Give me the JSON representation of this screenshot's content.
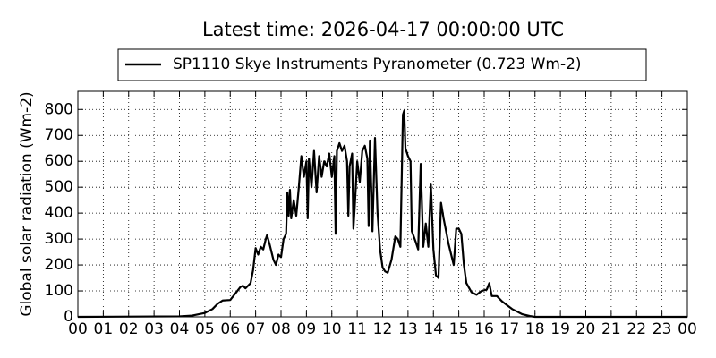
{
  "chart_data": {
    "type": "line",
    "title": "Latest time: 2026-04-17 00:00:00 UTC",
    "y_label": "Global solar radiation (Wm-2)",
    "legend_position": "top-center",
    "grid": true,
    "x": [
      0,
      4,
      4.5,
      5,
      5.3,
      5.5,
      5.7,
      6,
      6.2,
      6.4,
      6.5,
      6.6,
      6.8,
      6.9,
      7,
      7.1,
      7.2,
      7.3,
      7.4,
      7.45,
      7.55,
      7.7,
      7.8,
      7.9,
      8,
      8.1,
      8.2,
      8.25,
      8.3,
      8.35,
      8.4,
      8.5,
      8.6,
      8.7,
      8.8,
      8.9,
      9,
      9.05,
      9.1,
      9.2,
      9.3,
      9.4,
      9.5,
      9.6,
      9.7,
      9.8,
      9.9,
      10,
      10.1,
      10.15,
      10.2,
      10.3,
      10.4,
      10.5,
      10.6,
      10.65,
      10.7,
      10.8,
      10.85,
      10.9,
      11,
      11.1,
      11.2,
      11.3,
      11.4,
      11.45,
      11.5,
      11.6,
      11.7,
      11.8,
      11.9,
      12,
      12.1,
      12.2,
      12.35,
      12.5,
      12.6,
      12.7,
      12.8,
      12.85,
      12.9,
      13,
      13.1,
      13.15,
      13.3,
      13.4,
      13.5,
      13.6,
      13.7,
      13.8,
      13.9,
      14,
      14.1,
      14.2,
      14.3,
      14.4,
      14.5,
      14.6,
      14.7,
      14.8,
      14.9,
      15,
      15.1,
      15.2,
      15.3,
      15.5,
      15.7,
      15.9,
      16.1,
      16.2,
      16.3,
      16.5,
      16.7,
      16.9,
      17.1,
      17.3,
      17.5,
      17.8,
      18,
      24
    ],
    "series": [
      {
        "name": "SP1110 Skye Instruments Pyranometer (0.723 Wm-2)",
        "color": "#000000",
        "values": [
          0,
          2,
          5,
          15,
          30,
          50,
          63,
          65,
          90,
          115,
          120,
          110,
          130,
          180,
          265,
          240,
          270,
          260,
          300,
          315,
          280,
          220,
          200,
          240,
          230,
          300,
          320,
          480,
          390,
          490,
          380,
          450,
          390,
          500,
          620,
          540,
          600,
          380,
          610,
          500,
          640,
          480,
          620,
          540,
          600,
          580,
          630,
          540,
          620,
          320,
          640,
          670,
          640,
          660,
          600,
          390,
          580,
          630,
          340,
          420,
          600,
          520,
          640,
          660,
          610,
          350,
          680,
          330,
          690,
          400,
          260,
          190,
          175,
          170,
          220,
          310,
          300,
          270,
          780,
          795,
          650,
          620,
          600,
          330,
          290,
          260,
          590,
          270,
          360,
          270,
          510,
          260,
          160,
          150,
          440,
          380,
          330,
          280,
          240,
          200,
          340,
          340,
          320,
          200,
          130,
          95,
          85,
          100,
          105,
          130,
          80,
          80,
          60,
          45,
          30,
          20,
          10,
          3,
          0,
          0
        ]
      }
    ],
    "xlim": [
      0,
      24
    ],
    "xticks": [
      {
        "value": 0,
        "label": "00"
      },
      {
        "value": 1,
        "label": "01"
      },
      {
        "value": 2,
        "label": "02"
      },
      {
        "value": 3,
        "label": "03"
      },
      {
        "value": 4,
        "label": "04"
      },
      {
        "value": 5,
        "label": "05"
      },
      {
        "value": 6,
        "label": "06"
      },
      {
        "value": 7,
        "label": "07"
      },
      {
        "value": 8,
        "label": "08"
      },
      {
        "value": 9,
        "label": "09"
      },
      {
        "value": 10,
        "label": "10"
      },
      {
        "value": 11,
        "label": "11"
      },
      {
        "value": 12,
        "label": "12"
      },
      {
        "value": 13,
        "label": "13"
      },
      {
        "value": 14,
        "label": "14"
      },
      {
        "value": 15,
        "label": "15"
      },
      {
        "value": 16,
        "label": "16"
      },
      {
        "value": 17,
        "label": "17"
      },
      {
        "value": 18,
        "label": "18"
      },
      {
        "value": 19,
        "label": "19"
      },
      {
        "value": 20,
        "label": "20"
      },
      {
        "value": 21,
        "label": "21"
      },
      {
        "value": 22,
        "label": "22"
      },
      {
        "value": 23,
        "label": "23"
      },
      {
        "value": 24,
        "label": "00"
      }
    ],
    "ylim": [
      0,
      870
    ],
    "yticks": [
      0,
      100,
      200,
      300,
      400,
      500,
      600,
      700,
      800
    ]
  }
}
